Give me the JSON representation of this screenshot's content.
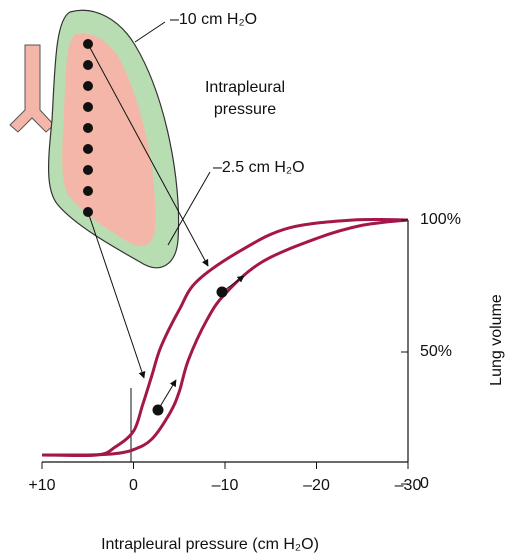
{
  "chart_data": {
    "type": "line",
    "x_label": "Intrapleural pressure (cm H₂O)",
    "y_label": "Lung volume",
    "annotations": [
      "–10 cm H₂O",
      "Intrapleural",
      "pressure",
      "–2.5 cm H₂O"
    ],
    "xlim": [
      10,
      -30
    ],
    "xticks": [
      {
        "value": 10,
        "label": "+10"
      },
      0,
      {
        "value": -10,
        "label": "–10"
      },
      {
        "value": -20,
        "label": "–20"
      },
      {
        "value": -30,
        "label": "–30"
      }
    ],
    "ylim": [
      0,
      100
    ],
    "yticks": [
      0,
      {
        "value": 50,
        "label": "50%"
      },
      {
        "value": 100,
        "label": "100%"
      }
    ],
    "series": [
      {
        "color": "#a3174a",
        "x": [
          10,
          5,
          2,
          0,
          -2,
          -4,
          -5,
          -6,
          -8,
          -10,
          -14,
          -20,
          -25,
          -30
        ],
        "values": [
          11,
          11,
          11.5,
          13,
          17,
          27,
          35,
          47,
          62,
          72,
          84,
          93,
          98,
          100
        ]
      },
      {
        "color": "#a3174a",
        "x": [
          10,
          4,
          2,
          0,
          -1,
          -2,
          -3,
          -5,
          -7,
          -12,
          -17,
          -24,
          -30
        ],
        "values": [
          11,
          11,
          14,
          20,
          30,
          41,
          52,
          66,
          77,
          89,
          97,
          100,
          100
        ]
      }
    ]
  }
}
